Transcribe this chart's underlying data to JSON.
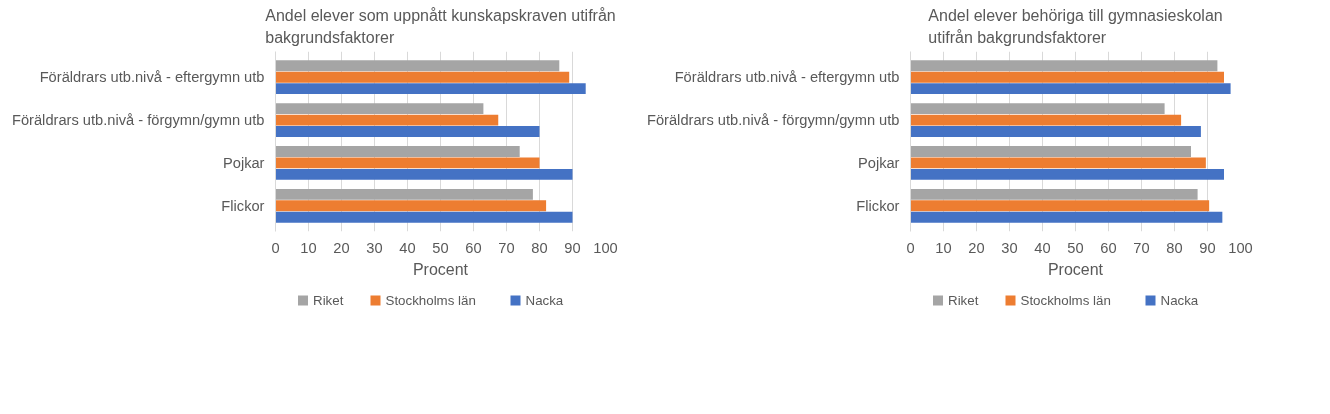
{
  "chart_data": [
    {
      "type": "bar",
      "orientation": "horizontal",
      "title": "Andel elever som uppnått kunskapskraven utifrån bakgrundsfaktorer",
      "xlabel": "Procent",
      "categories": [
        "Föräldrars utb.nivå - eftergymn utb",
        "Föräldrars utb.nivå - förgymn/gymn utb",
        "Pojkar",
        "Flickor"
      ],
      "series": [
        {
          "name": "Riket",
          "color": "#a5a5a5",
          "values": [
            86,
            63,
            74,
            78
          ]
        },
        {
          "name": "Stockholms län",
          "color": "#ed7d31",
          "values": [
            89,
            67.5,
            80,
            82
          ]
        },
        {
          "name": "Nacka",
          "color": "#4472c4",
          "values": [
            94,
            80,
            90,
            90
          ]
        }
      ],
      "xlim": [
        0,
        100
      ],
      "xticks": [
        0,
        10,
        20,
        30,
        40,
        50,
        60,
        70,
        80,
        90,
        100
      ],
      "grid": "x",
      "legend": "bottom"
    },
    {
      "type": "bar",
      "orientation": "horizontal",
      "title": "Andel elever behöriga till gymnasieskolan utifrån bakgrundsfaktorer",
      "xlabel": "Procent",
      "categories": [
        "Föräldrars utb.nivå - eftergymn utb",
        "Föräldrars utb.nivå - förgymn/gymn utb",
        "Pojkar",
        "Flickor"
      ],
      "series": [
        {
          "name": "Riket",
          "color": "#a5a5a5",
          "values": [
            93,
            77,
            85,
            87
          ]
        },
        {
          "name": "Stockholms län",
          "color": "#ed7d31",
          "values": [
            95,
            82,
            89.5,
            90.5
          ]
        },
        {
          "name": "Nacka",
          "color": "#4472c4",
          "values": [
            97,
            88,
            95,
            94.5
          ]
        }
      ],
      "xlim": [
        0,
        100
      ],
      "xticks": [
        0,
        10,
        20,
        30,
        40,
        50,
        60,
        70,
        80,
        90,
        100
      ],
      "grid": "x",
      "legend": "bottom"
    }
  ]
}
